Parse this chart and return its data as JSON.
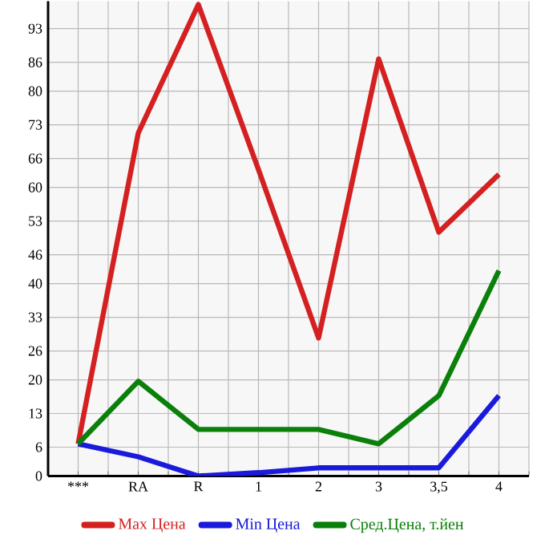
{
  "chart_data": {
    "type": "line",
    "categories": [
      "***",
      "RA",
      "R",
      "1",
      "2",
      "3",
      "3,5",
      "4"
    ],
    "series": [
      {
        "name": "Max Цена",
        "color": "#d42020",
        "values": [
          6.7,
          71.3,
          98,
          63.7,
          28.7,
          86.7,
          50.7,
          62.7
        ]
      },
      {
        "name": "Min Цена",
        "color": "#1a1adc",
        "values": [
          6.7,
          4,
          0,
          0.7,
          1.7,
          1.7,
          1.7,
          16.7
        ]
      },
      {
        "name": "Сред.Цена, т.йен",
        "color": "#0a800a",
        "values": [
          6.7,
          19.7,
          9.7,
          9.7,
          9.7,
          6.7,
          16.7,
          42.7
        ]
      }
    ],
    "ylim": [
      0,
      98.7
    ],
    "yticks": [
      0,
      6,
      13,
      20,
      26,
      33,
      40,
      46,
      53,
      60,
      66,
      73,
      80,
      86,
      93
    ],
    "grid": true,
    "legend": "bottom",
    "marker": "none",
    "line_style": "solid"
  }
}
